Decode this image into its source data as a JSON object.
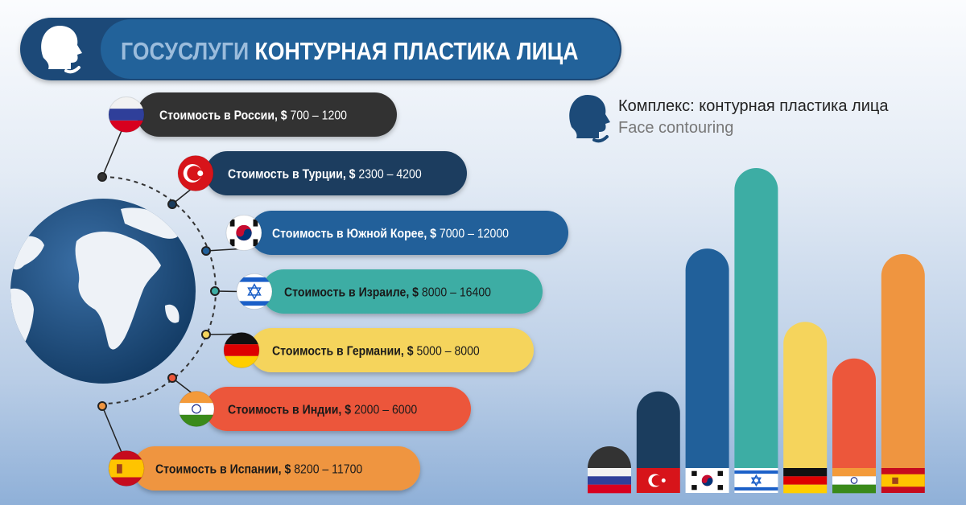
{
  "header": {
    "brand": "ГОСУСЛУГИ",
    "title": "КОНТУРНАЯ ПЛАСТИКА ЛИЦА",
    "brand_color": "#9bbcdc",
    "icon": "face-profile-icon"
  },
  "legend": {
    "icon": "face-profile-icon",
    "line1": "Комплекс: контурная пластика лица",
    "line2": "Face contouring"
  },
  "countries": [
    {
      "flag": "russia-flag",
      "label": "Стоимость в России, $",
      "range": "700 – 1200",
      "color": "#333333",
      "text_color": "#ffffff"
    },
    {
      "flag": "turkey-flag",
      "label": "Стоимость в Турции, $",
      "range": "2300 – 4200",
      "color": "#1b3d5e",
      "text_color": "#ffffff"
    },
    {
      "flag": "south-korea-flag",
      "label": "Стоимость в Южной Корее, $",
      "range": "7000 – 12000",
      "color": "#21609a",
      "text_color": "#ffffff"
    },
    {
      "flag": "israel-flag",
      "label": "Стоимость в Израиле, $",
      "range": "8000 – 16400",
      "color": "#3dada4",
      "text_color": "#1a1a1a"
    },
    {
      "flag": "germany-flag",
      "label": "Стоимость в Германии, $",
      "range": "5000 – 8000",
      "color": "#f5d45c",
      "text_color": "#1a1a1a"
    },
    {
      "flag": "india-flag",
      "label": "Стоимость в Индии, $",
      "range": "2000 – 6000",
      "color": "#ec573b",
      "text_color": "#1a1a1a"
    },
    {
      "flag": "spain-flag",
      "label": "Стоимость в Испании, $",
      "range": "8200 – 11700",
      "color": "#ef9540",
      "text_color": "#1a1a1a"
    }
  ],
  "chart_data": {
    "type": "bar",
    "categories": [
      "Россия",
      "Турция",
      "Южная Корея",
      "Израиль",
      "Германия",
      "Индия",
      "Испания"
    ],
    "values": [
      1200,
      4200,
      12000,
      16400,
      8000,
      6000,
      11700
    ],
    "colors": [
      "#333333",
      "#1b3d5e",
      "#21609a",
      "#3dada4",
      "#f5d45c",
      "#ec573b",
      "#ef9540"
    ],
    "title": "",
    "xlabel": "",
    "ylabel": "",
    "grid": false
  }
}
